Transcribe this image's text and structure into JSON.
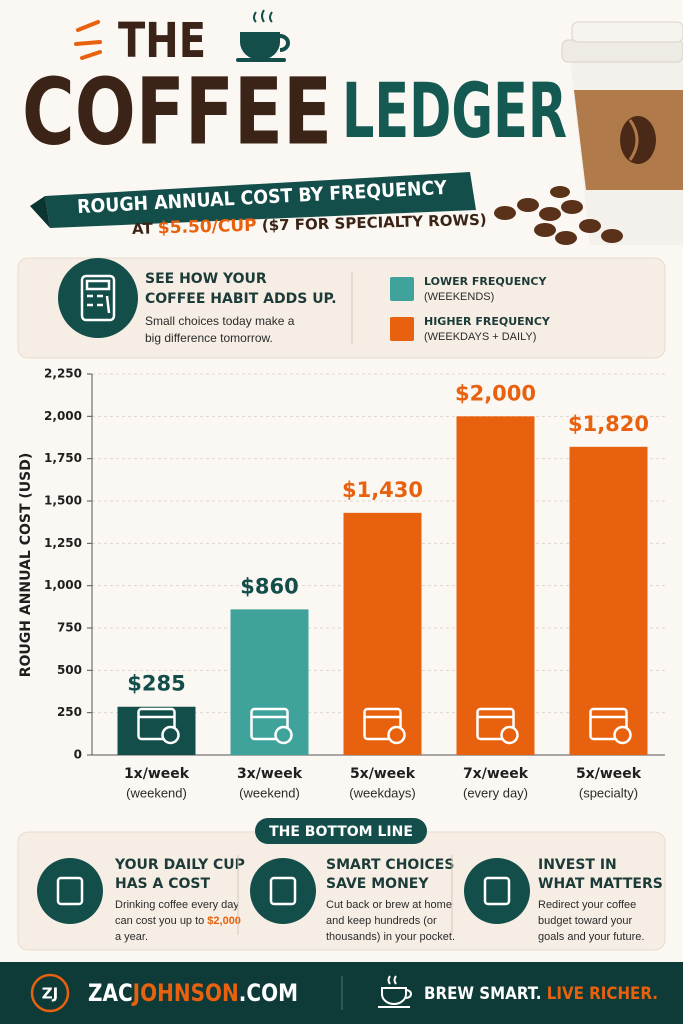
{
  "header": {
    "title_line1": "THE",
    "title_word1": "COFFEE",
    "title_word2": "LEDGER",
    "banner": "ROUGH ANNUAL COST BY FREQUENCY",
    "subtitle_prefix": "AT",
    "subtitle_highlight": "$5.50/CUP",
    "subtitle_suffix": "($7 FOR SPECIALTY ROWS)"
  },
  "intro": {
    "heading": [
      "SEE HOW YOUR",
      "COFFEE HABIT ADDS UP."
    ],
    "body": [
      "Small choices today make a",
      "big difference tomorrow."
    ]
  },
  "legend": [
    {
      "name": "LOWER FREQUENCY",
      "note": "(WEEKENDS)",
      "color": "#3fa39b"
    },
    {
      "name": "HIGHER FREQUENCY",
      "note": "(WEEKDAYS + DAILY)",
      "color": "#e8610e"
    }
  ],
  "chart_data": {
    "type": "bar",
    "y_label": "ROUGH ANNUAL COST (USD)",
    "categories": [
      "1x/week",
      "3x/week",
      "5x/week",
      "7x/week",
      "5x/week"
    ],
    "category_notes": [
      "(weekend)",
      "(weekend)",
      "(weekdays)",
      "(every day)",
      "(specialty)"
    ],
    "values": [
      285,
      860,
      1430,
      2000,
      1820
    ],
    "value_labels": [
      "$285",
      "$860",
      "$1,430",
      "$2,000",
      "$1,820"
    ],
    "colors": [
      "#134e4a",
      "#3fa39b",
      "#e8610e",
      "#e8610e",
      "#e8610e"
    ],
    "ylim": [
      0,
      2250
    ],
    "yticks": [
      0,
      250,
      500,
      750,
      {
        "value": 1000,
        "label": "1,000"
      },
      {
        "value": 1250,
        "label": "1,250"
      },
      {
        "value": 1500,
        "label": "1,500"
      },
      {
        "value": 1750,
        "label": "1,750"
      },
      {
        "value": 2000,
        "label": "2,000"
      },
      {
        "value": 2250,
        "label": "2,250"
      }
    ],
    "grid": true
  },
  "bottom_line": {
    "title": "THE BOTTOM LINE",
    "cards": [
      {
        "title": [
          "YOUR DAILY CUP",
          "HAS A COST"
        ],
        "body": [
          "Drinking coffee every day",
          "can cost you up to",
          "a year."
        ],
        "highlight": "$2,000"
      },
      {
        "title": [
          "SMART CHOICES",
          "SAVE MONEY"
        ],
        "body": [
          "Cut back or brew at home",
          "and keep hundreds (or",
          "thousands) in your pocket."
        ]
      },
      {
        "title": [
          "INVEST IN",
          "WHAT MATTERS"
        ],
        "body": [
          "Redirect your coffee",
          "budget toward your",
          "goals and your future."
        ]
      }
    ]
  },
  "footer": {
    "logo": "ZJ",
    "site_part1": "ZAC",
    "site_part2": "JOHNSON",
    "site_part3": ".COM",
    "slogan_part1": "BREW SMART.",
    "slogan_part2": "LIVE RICHER."
  }
}
